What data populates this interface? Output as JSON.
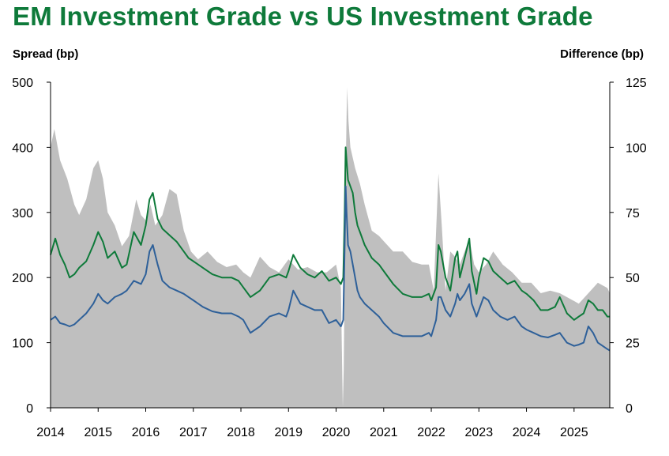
{
  "title": "EM Investment Grade vs US Investment Grade",
  "chart_data": {
    "type": "line",
    "title": "EM Investment Grade vs US Investment Grade",
    "ylabel": "Spread (bp)",
    "y2label": "Difference (bp)",
    "ylim": [
      0,
      500
    ],
    "y2lim": [
      0,
      125
    ],
    "yticks": [
      0,
      100,
      200,
      300,
      400,
      500
    ],
    "y2ticks": [
      0,
      25,
      50,
      75,
      100,
      125
    ],
    "xlim": [
      2014,
      2025.75
    ],
    "xticks": [
      "2014",
      "2015",
      "2016",
      "2017",
      "2018",
      "2019",
      "2020",
      "2021",
      "2022",
      "2023",
      "2024",
      "2025"
    ],
    "grid": false,
    "legend": "none",
    "series": [
      {
        "color": "#0e7a3a",
        "axis": "left",
        "x": [
          2014.0,
          2014.1,
          2014.2,
          2014.3,
          2014.4,
          2014.5,
          2014.6,
          2014.75,
          2014.9,
          2015.0,
          2015.1,
          2015.2,
          2015.35,
          2015.5,
          2015.6,
          2015.75,
          2015.9,
          2016.0,
          2016.08,
          2016.15,
          2016.25,
          2016.35,
          2016.5,
          2016.65,
          2016.8,
          2016.9,
          2017.0,
          2017.2,
          2017.4,
          2017.6,
          2017.8,
          2017.95,
          2018.05,
          2018.2,
          2018.4,
          2018.6,
          2018.8,
          2018.95,
          2019.0,
          2019.1,
          2019.25,
          2019.4,
          2019.55,
          2019.7,
          2019.85,
          2020.0,
          2020.1,
          2020.15,
          2020.18,
          2020.2,
          2020.22,
          2020.25,
          2020.3,
          2020.35,
          2020.4,
          2020.45,
          2020.5,
          2020.6,
          2020.75,
          2020.9,
          2021.0,
          2021.2,
          2021.4,
          2021.6,
          2021.8,
          2021.95,
          2022.0,
          2022.1,
          2022.15,
          2022.2,
          2022.3,
          2022.4,
          2022.5,
          2022.55,
          2022.6,
          2022.7,
          2022.8,
          2022.85,
          2022.95,
          2023.0,
          2023.1,
          2023.2,
          2023.3,
          2023.45,
          2023.6,
          2023.75,
          2023.9,
          2024.0,
          2024.15,
          2024.3,
          2024.45,
          2024.6,
          2024.7,
          2024.85,
          2025.0,
          2025.1,
          2025.2,
          2025.3,
          2025.4,
          2025.5,
          2025.6,
          2025.7,
          2025.75
        ],
        "values": [
          235,
          260,
          235,
          220,
          200,
          205,
          215,
          225,
          250,
          270,
          255,
          230,
          240,
          215,
          220,
          270,
          250,
          280,
          320,
          330,
          290,
          275,
          265,
          255,
          240,
          230,
          225,
          215,
          205,
          200,
          200,
          195,
          185,
          170,
          180,
          200,
          205,
          200,
          210,
          235,
          215,
          205,
          200,
          210,
          195,
          200,
          190,
          200,
          300,
          400,
          380,
          350,
          340,
          330,
          300,
          280,
          270,
          250,
          230,
          220,
          210,
          190,
          175,
          170,
          170,
          175,
          165,
          185,
          250,
          240,
          200,
          180,
          230,
          240,
          200,
          230,
          260,
          210,
          175,
          200,
          230,
          225,
          210,
          200,
          190,
          195,
          180,
          175,
          165,
          150,
          150,
          155,
          170,
          145,
          135,
          140,
          145,
          165,
          160,
          150,
          150,
          140,
          140
        ]
      },
      {
        "color": "#2e6099",
        "axis": "left",
        "x": [
          2014.0,
          2014.1,
          2014.2,
          2014.3,
          2014.4,
          2014.5,
          2014.6,
          2014.75,
          2014.9,
          2015.0,
          2015.1,
          2015.2,
          2015.35,
          2015.5,
          2015.6,
          2015.75,
          2015.9,
          2016.0,
          2016.08,
          2016.15,
          2016.25,
          2016.35,
          2016.5,
          2016.65,
          2016.8,
          2016.9,
          2017.0,
          2017.2,
          2017.4,
          2017.6,
          2017.8,
          2017.95,
          2018.05,
          2018.2,
          2018.4,
          2018.6,
          2018.8,
          2018.95,
          2019.0,
          2019.1,
          2019.25,
          2019.4,
          2019.55,
          2019.7,
          2019.85,
          2020.0,
          2020.1,
          2020.15,
          2020.18,
          2020.2,
          2020.22,
          2020.25,
          2020.3,
          2020.35,
          2020.4,
          2020.45,
          2020.5,
          2020.6,
          2020.75,
          2020.9,
          2021.0,
          2021.2,
          2021.4,
          2021.6,
          2021.8,
          2021.95,
          2022.0,
          2022.1,
          2022.15,
          2022.2,
          2022.3,
          2022.4,
          2022.5,
          2022.55,
          2022.6,
          2022.7,
          2022.8,
          2022.85,
          2022.95,
          2023.0,
          2023.1,
          2023.2,
          2023.3,
          2023.45,
          2023.6,
          2023.75,
          2023.9,
          2024.0,
          2024.15,
          2024.3,
          2024.45,
          2024.6,
          2024.7,
          2024.85,
          2025.0,
          2025.1,
          2025.2,
          2025.3,
          2025.4,
          2025.5,
          2025.6,
          2025.7,
          2025.75
        ],
        "values": [
          135,
          140,
          130,
          128,
          125,
          128,
          135,
          145,
          160,
          175,
          165,
          160,
          170,
          175,
          180,
          195,
          190,
          205,
          240,
          250,
          220,
          195,
          185,
          180,
          175,
          170,
          165,
          155,
          148,
          145,
          145,
          140,
          135,
          115,
          125,
          140,
          145,
          140,
          150,
          180,
          160,
          155,
          150,
          150,
          130,
          135,
          125,
          135,
          250,
          340,
          300,
          250,
          240,
          220,
          200,
          180,
          170,
          160,
          150,
          140,
          130,
          115,
          110,
          110,
          110,
          115,
          110,
          135,
          170,
          170,
          150,
          140,
          160,
          175,
          165,
          175,
          190,
          160,
          140,
          150,
          170,
          165,
          150,
          140,
          135,
          140,
          125,
          120,
          115,
          110,
          108,
          112,
          115,
          100,
          95,
          97,
          100,
          125,
          115,
          100,
          95,
          90,
          88
        ]
      },
      {
        "color": "#bfbfbf",
        "axis": "right",
        "type": "area",
        "x": [
          2014.0,
          2014.08,
          2014.2,
          2014.35,
          2014.5,
          2014.6,
          2014.75,
          2014.9,
          2015.0,
          2015.1,
          2015.2,
          2015.35,
          2015.5,
          2015.65,
          2015.8,
          2015.9,
          2016.0,
          2016.1,
          2016.2,
          2016.35,
          2016.5,
          2016.65,
          2016.8,
          2016.95,
          2017.1,
          2017.3,
          2017.5,
          2017.7,
          2017.9,
          2018.05,
          2018.2,
          2018.4,
          2018.6,
          2018.8,
          2019.0,
          2019.2,
          2019.4,
          2019.6,
          2019.8,
          2020.0,
          2020.1,
          2020.14,
          2020.16,
          2020.2,
          2020.23,
          2020.26,
          2020.3,
          2020.4,
          2020.5,
          2020.6,
          2020.75,
          2020.9,
          2021.0,
          2021.2,
          2021.4,
          2021.6,
          2021.8,
          2021.95,
          2022.05,
          2022.15,
          2022.22,
          2022.3,
          2022.4,
          2022.5,
          2022.6,
          2022.7,
          2022.8,
          2022.9,
          2023.0,
          2023.15,
          2023.3,
          2023.5,
          2023.7,
          2023.9,
          2024.1,
          2024.3,
          2024.5,
          2024.7,
          2024.9,
          2025.1,
          2025.3,
          2025.5,
          2025.7,
          2025.75
        ],
        "values": [
          100,
          107,
          95,
          88,
          78,
          74,
          80,
          92,
          95,
          88,
          75,
          70,
          62,
          66,
          80,
          74,
          72,
          78,
          70,
          74,
          84,
          82,
          68,
          60,
          57,
          60,
          56,
          54,
          55,
          52,
          50,
          58,
          54,
          52,
          57,
          53,
          54,
          52,
          52,
          55,
          46,
          0,
          15,
          90,
          123,
          110,
          100,
          92,
          86,
          78,
          68,
          66,
          64,
          60,
          60,
          56,
          55,
          55,
          45,
          90,
          70,
          45,
          60,
          58,
          55,
          60,
          65,
          55,
          52,
          55,
          60,
          55,
          52,
          48,
          48,
          44,
          45,
          44,
          42,
          40,
          44,
          48,
          46,
          44
        ]
      }
    ]
  }
}
